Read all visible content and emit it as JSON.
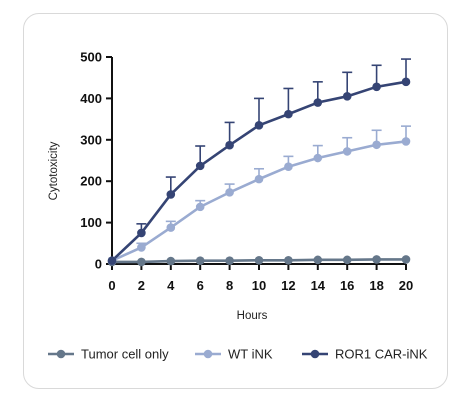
{
  "chart_data": {
    "type": "line",
    "title": "",
    "xlabel": "Hours",
    "ylabel": "Cytotoxicity",
    "xlim": [
      0,
      20
    ],
    "ylim": [
      0,
      500
    ],
    "x_ticks": [
      0,
      2,
      4,
      6,
      8,
      10,
      12,
      14,
      16,
      18,
      20
    ],
    "y_ticks": [
      0,
      100,
      200,
      300,
      400,
      500
    ],
    "grid": false,
    "legend": "bottom",
    "error_bars": "upper",
    "x": [
      0,
      2,
      4,
      6,
      8,
      10,
      12,
      14,
      16,
      18,
      20
    ],
    "series": [
      {
        "name": "Tumor cell only",
        "color": "#65778a",
        "values": [
          5,
          5,
          7,
          8,
          8,
          9,
          9,
          10,
          10,
          11,
          11
        ],
        "errors": [
          0,
          0,
          0,
          0,
          0,
          0,
          0,
          0,
          0,
          0,
          0
        ]
      },
      {
        "name": "WT iNK",
        "color": "#9aabd1",
        "values": [
          8,
          40,
          88,
          138,
          173,
          205,
          235,
          256,
          272,
          288,
          296
        ],
        "errors": [
          0,
          10,
          15,
          15,
          20,
          25,
          25,
          30,
          33,
          35,
          37
        ]
      },
      {
        "name": "ROR1 CAR-iNK",
        "color": "#354474",
        "values": [
          8,
          75,
          168,
          237,
          287,
          335,
          362,
          390,
          405,
          428,
          440
        ],
        "errors": [
          0,
          22,
          42,
          48,
          55,
          65,
          62,
          50,
          58,
          52,
          55
        ]
      }
    ]
  }
}
